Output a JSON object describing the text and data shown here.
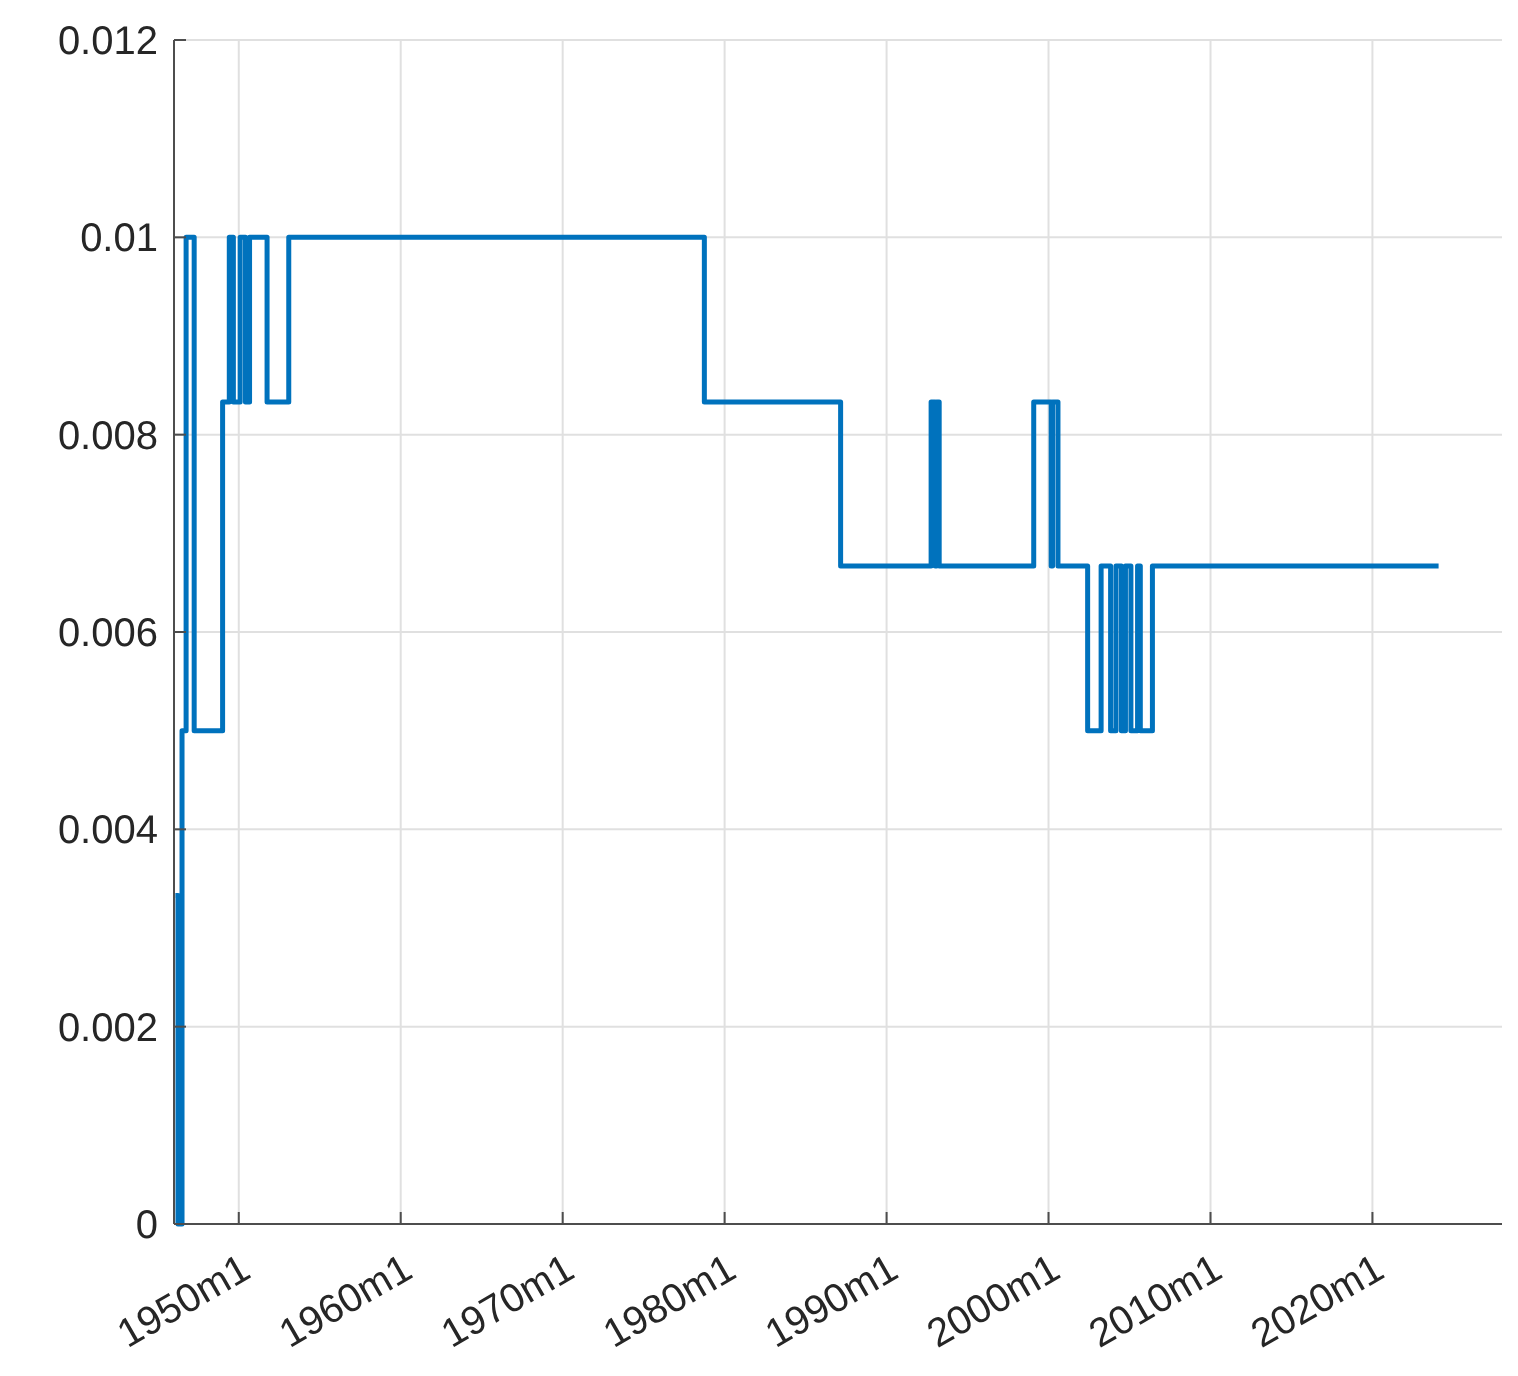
{
  "chart_data": {
    "type": "step",
    "x": [
      "1946-02",
      "1946-04",
      "1946-07",
      "1946-10",
      "1947-04",
      "1949-01",
      "1949-06",
      "1949-09",
      "1950-02",
      "1950-06",
      "1950-09",
      "1951-10",
      "1953-02",
      "1978-10",
      "1987-03",
      "1992-10",
      "1993-01",
      "1993-02",
      "1993-04",
      "1999-02",
      "2000-03",
      "2000-04",
      "2000-08",
      "2002-06",
      "2003-04",
      "2003-11",
      "2004-03",
      "2004-07",
      "2004-10",
      "2005-02",
      "2005-07",
      "2005-09",
      "2006-06",
      "2024-02"
    ],
    "series": [
      {
        "color": "#0072bd",
        "values": [
          0.00333,
          0,
          0.005,
          0.01,
          0.005,
          0.00833,
          0.01,
          0.00833,
          0.01,
          0.00833,
          0.01,
          0.00833,
          0.01,
          0.00833,
          0.00667,
          0.00833,
          0.00667,
          0.00833,
          0.00667,
          0.00833,
          0.00667,
          0.00833,
          0.00667,
          0.005,
          0.00667,
          0.005,
          0.00667,
          0.005,
          0.00667,
          0.005,
          0.00667,
          0.005,
          0.00667,
          0.00667
        ]
      }
    ],
    "xlim": [
      "1946-01",
      "2028-01"
    ],
    "xticks": [
      {
        "value": "1950-01",
        "label": "1950m1"
      },
      {
        "value": "1960-01",
        "label": "1960m1"
      },
      {
        "value": "1970-01",
        "label": "1970m1"
      },
      {
        "value": "1980-01",
        "label": "1980m1"
      },
      {
        "value": "1990-01",
        "label": "1990m1"
      },
      {
        "value": "2000-01",
        "label": "2000m1"
      },
      {
        "value": "2010-01",
        "label": "2010m1"
      },
      {
        "value": "2020-01",
        "label": "2020m1"
      }
    ],
    "ylim": [
      0,
      0.012
    ],
    "yticks": [
      0,
      0.002,
      0.004,
      0.006,
      0.008,
      0.01,
      0.012
    ],
    "grid": true,
    "line_style": "solid"
  }
}
